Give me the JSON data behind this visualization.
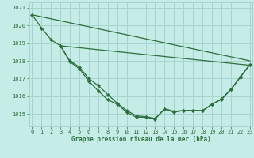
{
  "title": "Graphe pression niveau de la mer (hPa)",
  "background_color": "#c5ece6",
  "grid_color": "#a8d4ce",
  "line_color": "#2d6e3e",
  "xlim": [
    -0.3,
    23.3
  ],
  "ylim": [
    1014.3,
    1021.3
  ],
  "yticks": [
    1015,
    1016,
    1017,
    1018,
    1019,
    1020,
    1021
  ],
  "xticks": [
    0,
    1,
    2,
    3,
    4,
    5,
    6,
    7,
    8,
    9,
    10,
    11,
    12,
    13,
    14,
    15,
    16,
    17,
    18,
    19,
    20,
    21,
    22,
    23
  ],
  "series_straight1": {
    "x": [
      0,
      23
    ],
    "y": [
      1020.6,
      1018.0
    ],
    "linewidth": 0.9,
    "marker": false
  },
  "series_straight2": {
    "x": [
      3,
      23
    ],
    "y": [
      1018.85,
      1017.75
    ],
    "linewidth": 0.9,
    "marker": false
  },
  "series_curve1": {
    "x": [
      0,
      1,
      2,
      3,
      4,
      5,
      6,
      7,
      8,
      9,
      10,
      11,
      12,
      13,
      14,
      15,
      16,
      17,
      18,
      19,
      20,
      21,
      22,
      23
    ],
    "y": [
      1020.6,
      1019.85,
      1019.2,
      1018.85,
      1018.0,
      1017.65,
      1017.0,
      1016.6,
      1016.1,
      1015.6,
      1015.2,
      1014.9,
      1014.85,
      1014.75,
      1015.3,
      1015.15,
      1015.2,
      1015.2,
      1015.2,
      1015.55,
      1015.85,
      1016.4,
      1017.1,
      1017.8
    ],
    "linewidth": 0.9,
    "markersize": 2.2
  },
  "series_curve2": {
    "x": [
      3,
      4,
      5,
      6,
      7,
      8,
      9,
      10,
      11,
      12,
      13,
      14,
      15,
      16,
      17,
      18,
      19,
      20,
      21,
      22,
      23
    ],
    "y": [
      1018.85,
      1017.95,
      1017.55,
      1016.85,
      1016.3,
      1015.8,
      1015.55,
      1015.1,
      1014.82,
      1014.82,
      1014.72,
      1015.28,
      1015.1,
      1015.2,
      1015.2,
      1015.18,
      1015.55,
      1015.82,
      1016.38,
      1017.08,
      1017.78
    ],
    "linewidth": 0.9,
    "markersize": 2.2
  }
}
